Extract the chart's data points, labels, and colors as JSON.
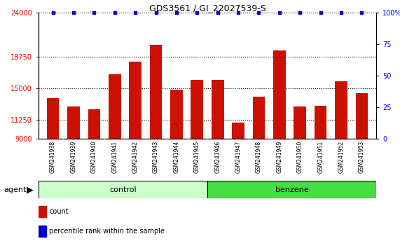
{
  "title": "GDS3561 / GI_22027539-S",
  "samples": [
    "GSM241938",
    "GSM241939",
    "GSM241940",
    "GSM241941",
    "GSM241942",
    "GSM241943",
    "GSM241944",
    "GSM241945",
    "GSM241946",
    "GSM241947",
    "GSM241948",
    "GSM241949",
    "GSM241950",
    "GSM241951",
    "GSM241952",
    "GSM241953"
  ],
  "counts": [
    13800,
    12800,
    12500,
    16700,
    18200,
    20200,
    14800,
    16000,
    16000,
    10900,
    14000,
    19500,
    12800,
    12900,
    15800,
    14400
  ],
  "percentiles": [
    100,
    100,
    100,
    100,
    100,
    100,
    100,
    100,
    100,
    100,
    100,
    100,
    100,
    100,
    100,
    100
  ],
  "ylim_left": [
    9000,
    24000
  ],
  "ylim_right": [
    0,
    100
  ],
  "yticks_left": [
    9000,
    11250,
    15000,
    18750,
    24000
  ],
  "yticks_right": [
    0,
    25,
    50,
    75,
    100
  ],
  "bar_color": "#cc1100",
  "dot_color": "#0000cc",
  "control_color": "#ccffcc",
  "benzene_color": "#44dd44",
  "tick_bg_color": "#cccccc",
  "agent_label": "agent",
  "legend_count": "count",
  "legend_percentile": "percentile rank within the sample",
  "control_count": 8,
  "benzene_count": 8
}
